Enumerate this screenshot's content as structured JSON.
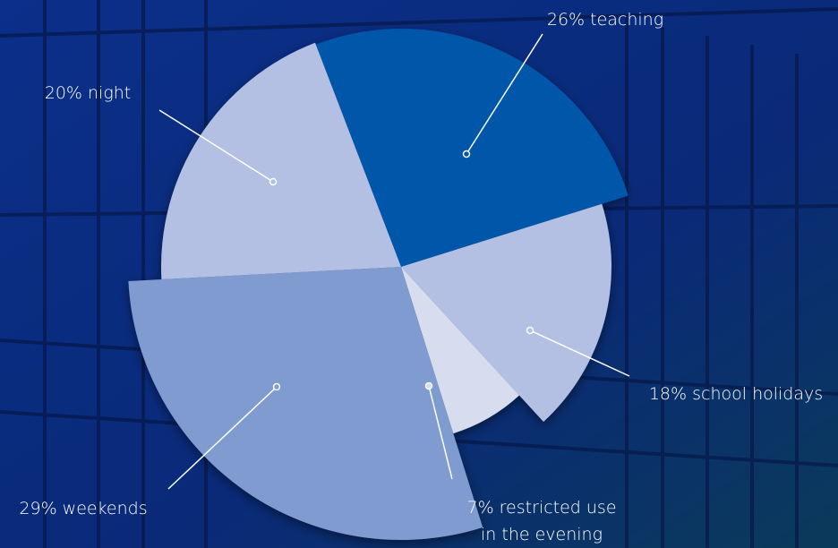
{
  "chart_data": {
    "type": "pie",
    "categories": [
      "teaching",
      "school holidays",
      "restricted use in the evening",
      "weekends",
      "night"
    ],
    "values": [
      26,
      18,
      7,
      29,
      20
    ],
    "value_labels": [
      "26% teaching",
      "18% school holidays",
      "7% restricted use\nin the evening",
      "29% weekends",
      "20% night"
    ],
    "radii": [
      266,
      235,
      195,
      305,
      268
    ],
    "colors": [
      "#0057a8",
      "#b3c0e3",
      "#d7ddef",
      "#7f9bd0",
      "#b3c0e3"
    ]
  }
}
